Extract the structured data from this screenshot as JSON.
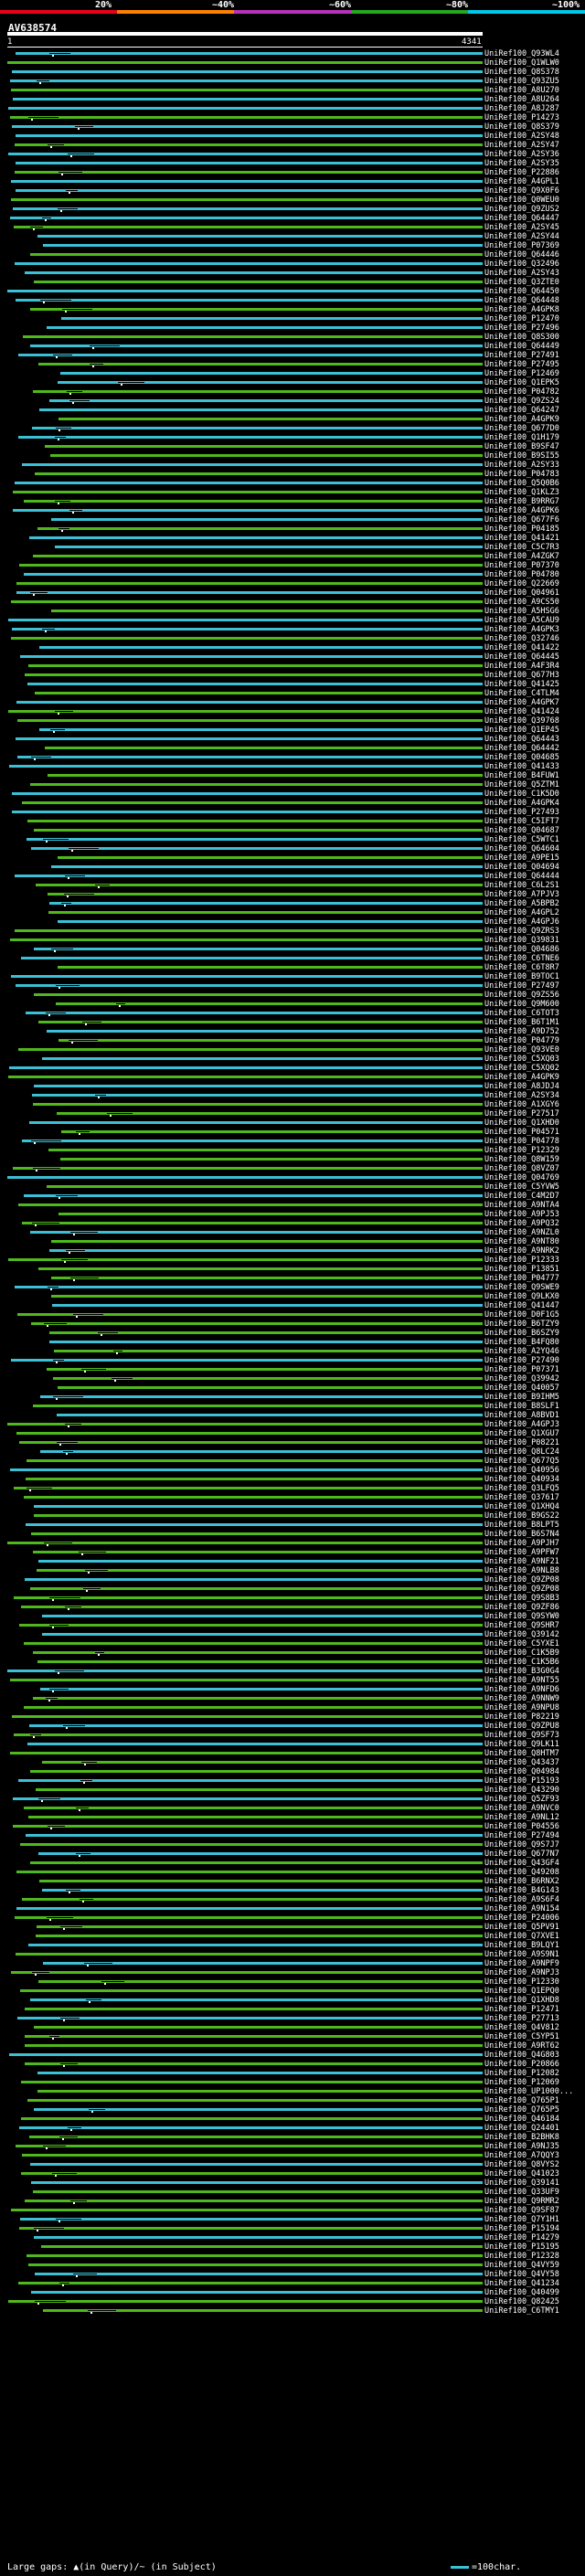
{
  "header": {
    "scale_labels": [
      "20%",
      "~40%",
      "~60%",
      "~80%",
      "~100%"
    ],
    "scale_colors": [
      "#e8001c",
      "#ff7f00",
      "#b832b8",
      "#22a822",
      "#00c8e8"
    ],
    "query_name": "AV638574",
    "ruler_start": "1",
    "ruler_end": "4341"
  },
  "colors": {
    "high": "#3cc0d6",
    "mid": "#4fb81c",
    "gap": "#3cc0d6"
  },
  "hits": [
    "UniRef100_Q93WL4",
    "UniRef100_Q1WLW0",
    "UniRef100_Q8S378",
    "UniRef100_Q93ZU5",
    "UniRef100_A8U270",
    "UniRef100_A8U264",
    "UniRef100_A8J287",
    "UniRef100_P14273",
    "UniRef100_Q8S379",
    "UniRef100_A2SY48",
    "UniRef100_A2SY47",
    "UniRef100_A2SY36",
    "UniRef100_A2SY35",
    "UniRef100_P22886",
    "UniRef100_A4GPL1",
    "UniRef100_Q9X0F6",
    "UniRef100_Q0WEU0",
    "UniRef100_Q9ZUS2",
    "UniRef100_Q64447",
    "UniRef100_A2SY45",
    "UniRef100_A2SY44",
    "UniRef100_P07369",
    "UniRef100_Q64446",
    "UniRef100_Q32496",
    "UniRef100_A2SY43",
    "UniRef100_Q3ZTE0",
    "UniRef100_Q64450",
    "UniRef100_Q64448",
    "UniRef100_A4GPK8",
    "UniRef100_P12470",
    "UniRef100_P27496",
    "UniRef100_Q8S300",
    "UniRef100_Q64449",
    "UniRef100_P27491",
    "UniRef100_P27495",
    "UniRef100_P12469",
    "UniRef100_Q1EPK5",
    "UniRef100_P04782",
    "UniRef100_Q9ZS24",
    "UniRef100_Q64247",
    "UniRef100_A4GPK9",
    "UniRef100_Q677D0",
    "UniRef100_Q1H179",
    "UniRef100_B9SF47",
    "UniRef100_B9SI55",
    "UniRef100_A2SY33",
    "UniRef100_P04783",
    "UniRef100_Q5Q0B6",
    "UniRef100_Q1KLZ3",
    "UniRef100_B9RRG7",
    "UniRef100_A4GPK6",
    "UniRef100_Q677F6",
    "UniRef100_P04185",
    "UniRef100_Q41421",
    "UniRef100_C5C7R3",
    "UniRef100_A4ZGK7",
    "UniRef100_P07370",
    "UniRef100_P04780",
    "UniRef100_Q22669",
    "UniRef100_Q04961",
    "UniRef100_A9CS50",
    "UniRef100_A5HSG6",
    "UniRef100_A5CAU9",
    "UniRef100_A4GPK3",
    "UniRef100_Q32746",
    "UniRef100_Q41422",
    "UniRef100_Q64445",
    "UniRef100_A4F3R4",
    "UniRef100_Q677H3",
    "UniRef100_Q41425",
    "UniRef100_C4TLM4",
    "UniRef100_A4GPK7",
    "UniRef100_Q41424",
    "UniRef100_Q39768",
    "UniRef100_Q1EP45",
    "UniRef100_Q64443",
    "UniRef100_Q64442",
    "UniRef100_Q04685",
    "UniRef100_Q41433",
    "UniRef100_B4FUW1",
    "UniRef100_Q5ZTM1",
    "UniRef100_C1K5D0",
    "UniRef100_A4GPK4",
    "UniRef100_P27493",
    "UniRef100_C5IFT7",
    "UniRef100_Q04687",
    "UniRef100_C5WTC1",
    "UniRef100_Q64604",
    "UniRef100_A9PE15",
    "UniRef100_Q04694",
    "UniRef100_Q64444",
    "UniRef100_C6L2S1",
    "UniRef100_A7PJV3",
    "UniRef100_A5BPB2",
    "UniRef100_A4GPL2",
    "UniRef100_A4GPJ6",
    "UniRef100_Q9ZRS3",
    "UniRef100_Q39831",
    "UniRef100_Q04686",
    "UniRef100_C6TNE6",
    "UniRef100_C6T8R7",
    "UniRef100_B9TOC1",
    "UniRef100_P27497",
    "UniRef100_Q9ZS56",
    "UniRef100_Q9M600",
    "UniRef100_C6TOT3",
    "UniRef100_B6T1M1",
    "UniRef100_A9D752",
    "UniRef100_P04779",
    "UniRef100_Q93VE0",
    "UniRef100_C5XQ03",
    "UniRef100_C5XQ02",
    "UniRef100_A4GPK9",
    "UniRef100_A8JDJ4",
    "UniRef100_A2SY34",
    "UniRef100_A1XGY6",
    "UniRef100_P27517",
    "UniRef100_Q1XHD0",
    "UniRef100_P04571",
    "UniRef100_P04778",
    "UniRef100_P12329",
    "UniRef100_Q8W159",
    "UniRef100_Q8VZ07",
    "UniRef100_Q04769",
    "UniRef100_C5YVW5",
    "UniRef100_C4M2D7",
    "UniRef100_A9NTA4",
    "UniRef100_A9PJ53",
    "UniRef100_A9PQ32",
    "UniRef100_A9NZL0",
    "UniRef100_A9NT80",
    "UniRef100_A9NRK2",
    "UniRef100_P12333",
    "UniRef100_P13851",
    "UniRef100_P04777",
    "UniRef100_Q9SWE9",
    "UniRef100_Q9LKX0",
    "UniRef100_Q41447",
    "UniRef100_D0F1G5",
    "UniRef100_B6TZY9",
    "UniRef100_B6SZY9",
    "UniRef100_B4FQ80",
    "UniRef100_A2YQ46",
    "UniRef100_P27490",
    "UniRef100_P07371",
    "UniRef100_Q39942",
    "UniRef100_Q40057",
    "UniRef100_B9IHM5",
    "UniRef100_B8SLF1",
    "UniRef100_A8BVD1",
    "UniRef100_A4GPJ3",
    "UniRef100_Q1XGU7",
    "UniRef100_P08221",
    "UniRef100_Q8LC24",
    "UniRef100_Q677Q5",
    "UniRef100_Q40956",
    "UniRef100_Q40934",
    "UniRef100_Q3LFQ5",
    "UniRef100_Q37617",
    "UniRef100_Q1XHQ4",
    "UniRef100_B9GS22",
    "UniRef100_B8LPT5",
    "UniRef100_B6S7N4",
    "UniRef100_A9PJH7",
    "UniRef100_A9PFW7",
    "UniRef100_A9NF21",
    "UniRef100_A9NLB8",
    "UniRef100_Q9ZP08",
    "UniRef100_Q9ZP08",
    "UniRef100_Q9S8B3",
    "UniRef100_Q9ZF86",
    "UniRef100_Q9SYW0",
    "UniRef100_Q9SHR7",
    "UniRef100_Q39142",
    "UniRef100_C5YXE1",
    "UniRef100_C1K5B9",
    "UniRef100_C1K5B6",
    "UniRef100_B3G0G4",
    "UniRef100_A9NT55",
    "UniRef100_A9NFD6",
    "UniRef100_A9NNW9",
    "UniRef100_A9NPU8",
    "UniRef100_P82219",
    "UniRef100_Q9ZPU8",
    "UniRef100_Q9SF73",
    "UniRef100_Q9LK11",
    "UniRef100_Q8HTM7",
    "UniRef100_Q43437",
    "UniRef100_Q04984",
    "UniRef100_P15193",
    "UniRef100_Q43290",
    "UniRef100_Q5ZF93",
    "UniRef100_A9NVC0",
    "UniRef100_A9NL12",
    "UniRef100_P04556",
    "UniRef100_P27494",
    "UniRef100_Q9S7J7",
    "UniRef100_Q677N7",
    "UniRef100_Q43GF4",
    "UniRef100_Q49208",
    "UniRef100_B6RNX2",
    "UniRef100_B4G143",
    "UniRef100_A9S6F4",
    "UniRef100_A9N154",
    "UniRef100_P24006",
    "UniRef100_Q5PV91",
    "UniRef100_Q7XVE1",
    "UniRef100_B9LQY1",
    "UniRef100_A9S9N1",
    "UniRef100_A9NPF9",
    "UniRef100_A9NPJ3",
    "UniRef100_P12330",
    "UniRef100_Q1EPQ0",
    "UniRef100_Q1XHD8",
    "UniRef100_P12471",
    "UniRef100_P27713",
    "UniRef100_Q4V812",
    "UniRef100_C5YP51",
    "UniRef100_A9RT62",
    "UniRef100_Q4G803",
    "UniRef100_P20866",
    "UniRef100_P12082",
    "UniRef100_P12069",
    "UniRef100_UP1000...",
    "UniRef100_Q765P1",
    "UniRef100_Q765P5",
    "UniRef100_Q46184",
    "UniRef100_Q24401",
    "UniRef100_B2BHK8",
    "UniRef100_A9NJ35",
    "UniRef100_A7QQY3",
    "UniRef100_Q8VYS2",
    "UniRef100_Q41023",
    "UniRef100_Q39141",
    "UniRef100_Q33UF9",
    "UniRef100_Q9RMR2",
    "UniRef100_Q9SF87",
    "UniRef100_Q7Y1H1",
    "UniRef100_P15194",
    "UniRef100_P14279",
    "UniRef100_P15195",
    "UniRef100_P12328",
    "UniRef100_Q4VY59",
    "UniRef100_Q4VY58",
    "UniRef100_Q41234",
    "UniRef100_Q40499",
    "UniRef100_Q82425",
    "UniRef100_C6TMY1"
  ],
  "footer": {
    "legend": "Large gaps: ▲(in Query)/~ (in Subject)",
    "scale_text": "=100char."
  }
}
